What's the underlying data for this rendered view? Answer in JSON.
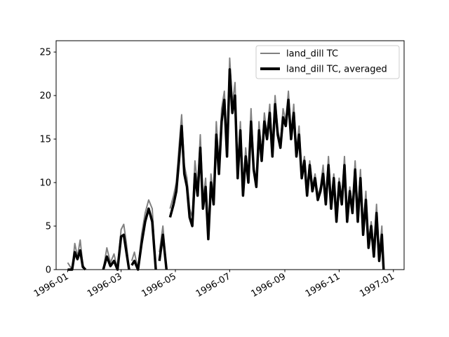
{
  "chart_data": {
    "type": "line",
    "title": "",
    "xlabel": "",
    "ylabel": "",
    "xlim": [
      "1995-12-19",
      "1997-01-13"
    ],
    "ylim": [
      0,
      26.3
    ],
    "grid": false,
    "legend_position": "upper-right",
    "x_ticks": [
      "1996-01",
      "1996-03",
      "1996-05",
      "1996-07",
      "1996-09",
      "1996-11",
      "1997-01"
    ],
    "y_ticks": [
      0,
      5,
      10,
      15,
      20,
      25
    ],
    "series": [
      {
        "name": "land_dill TC",
        "color": "#808080",
        "x": [
          "1996-01-01",
          "1996-01-06",
          "1996-01-09",
          "1996-01-12",
          "1996-01-15",
          "1996-01-18",
          "1996-01-21",
          "1996-02-10",
          "1996-02-14",
          "1996-02-18",
          "1996-02-22",
          "1996-02-26",
          "1996-03-01",
          "1996-03-04",
          "1996-03-07",
          "1996-03-10",
          "1996-03-13",
          "1996-03-16",
          "1996-03-20",
          "1996-03-24",
          "1996-03-28",
          "1996-04-01",
          "1996-04-05",
          "1996-04-09",
          "1996-04-13",
          "1996-04-17",
          "1996-04-21",
          "1996-04-25",
          "1996-04-29",
          "1996-05-02",
          "1996-05-05",
          "1996-05-08",
          "1996-05-11",
          "1996-05-14",
          "1996-05-17",
          "1996-05-20",
          "1996-05-23",
          "1996-05-26",
          "1996-05-29",
          "1996-06-01",
          "1996-06-04",
          "1996-06-07",
          "1996-06-10",
          "1996-06-13",
          "1996-06-16",
          "1996-06-19",
          "1996-06-22",
          "1996-06-25",
          "1996-06-28",
          "1996-07-01",
          "1996-07-04",
          "1996-07-07",
          "1996-07-10",
          "1996-07-13",
          "1996-07-16",
          "1996-07-19",
          "1996-07-22",
          "1996-07-25",
          "1996-07-28",
          "1996-07-31",
          "1996-08-03",
          "1996-08-06",
          "1996-08-09",
          "1996-08-12",
          "1996-08-15",
          "1996-08-18",
          "1996-08-21",
          "1996-08-24",
          "1996-08-27",
          "1996-08-30",
          "1996-09-02",
          "1996-09-05",
          "1996-09-08",
          "1996-09-11",
          "1996-09-14",
          "1996-09-17",
          "1996-09-20",
          "1996-09-23",
          "1996-09-26",
          "1996-09-29",
          "1996-10-02",
          "1996-10-05",
          "1996-10-08",
          "1996-10-11",
          "1996-10-14",
          "1996-10-17",
          "1996-10-20",
          "1996-10-23",
          "1996-10-26",
          "1996-10-29",
          "1996-11-01",
          "1996-11-04",
          "1996-11-07",
          "1996-11-10",
          "1996-11-13",
          "1996-11-16",
          "1996-11-19",
          "1996-11-22",
          "1996-11-25",
          "1996-11-28",
          "1996-12-01",
          "1996-12-04",
          "1996-12-07",
          "1996-12-10",
          "1996-12-13",
          "1996-12-16",
          "1996-12-19",
          "1996-12-21"
        ],
        "y": [
          0.8,
          0,
          3.0,
          1.5,
          3.4,
          0.5,
          0,
          0,
          2.5,
          0.8,
          1.8,
          0,
          4.6,
          5.2,
          3.0,
          0,
          1.0,
          2.0,
          0,
          4.0,
          6.5,
          8.0,
          7.0,
          0,
          2.0,
          5.0,
          0,
          7.0,
          8.5,
          10.0,
          14.0,
          17.8,
          12.0,
          10.5,
          7.0,
          6.0,
          12.5,
          9.5,
          15.5,
          8.0,
          10.5,
          4.0,
          11.0,
          8.5,
          17.0,
          12.0,
          18.5,
          20.5,
          14.0,
          24.3,
          19.0,
          21.5,
          11.0,
          17.0,
          9.0,
          14.0,
          10.5,
          18.5,
          12.0,
          10.0,
          17.0,
          13.0,
          18.0,
          15.5,
          19.0,
          13.5,
          20.0,
          16.0,
          14.5,
          18.5,
          17.0,
          20.5,
          15.5,
          19.0,
          13.5,
          16.5,
          11.0,
          13.0,
          9.0,
          12.5,
          9.5,
          11.0,
          8.5,
          9.5,
          12.0,
          8.0,
          13.0,
          7.5,
          11.0,
          6.0,
          10.5,
          8.0,
          13.0,
          6.0,
          9.5,
          7.0,
          12.5,
          6.5,
          11.5,
          4.5,
          9.0,
          3.0,
          5.5,
          2.0,
          7.5,
          1.5,
          5.0,
          0
        ],
        "gaps_after": [
          "1996-01-21",
          "1996-03-10",
          "1996-04-09",
          "1996-04-21"
        ]
      },
      {
        "name": "land_dill TC, averaged",
        "color": "#000000",
        "x": [
          "1996-01-01",
          "1996-01-06",
          "1996-01-09",
          "1996-01-12",
          "1996-01-15",
          "1996-01-18",
          "1996-01-21",
          "1996-02-10",
          "1996-02-14",
          "1996-02-18",
          "1996-02-22",
          "1996-02-26",
          "1996-03-01",
          "1996-03-04",
          "1996-03-07",
          "1996-03-10",
          "1996-03-13",
          "1996-03-16",
          "1996-03-20",
          "1996-03-24",
          "1996-03-28",
          "1996-04-01",
          "1996-04-05",
          "1996-04-09",
          "1996-04-13",
          "1996-04-17",
          "1996-04-21",
          "1996-04-25",
          "1996-04-29",
          "1996-05-02",
          "1996-05-05",
          "1996-05-08",
          "1996-05-11",
          "1996-05-14",
          "1996-05-17",
          "1996-05-20",
          "1996-05-23",
          "1996-05-26",
          "1996-05-29",
          "1996-06-01",
          "1996-06-04",
          "1996-06-07",
          "1996-06-10",
          "1996-06-13",
          "1996-06-16",
          "1996-06-19",
          "1996-06-22",
          "1996-06-25",
          "1996-06-28",
          "1996-07-01",
          "1996-07-04",
          "1996-07-07",
          "1996-07-10",
          "1996-07-13",
          "1996-07-16",
          "1996-07-19",
          "1996-07-22",
          "1996-07-25",
          "1996-07-28",
          "1996-07-31",
          "1996-08-03",
          "1996-08-06",
          "1996-08-09",
          "1996-08-12",
          "1996-08-15",
          "1996-08-18",
          "1996-08-21",
          "1996-08-24",
          "1996-08-27",
          "1996-08-30",
          "1996-09-02",
          "1996-09-05",
          "1996-09-08",
          "1996-09-11",
          "1996-09-14",
          "1996-09-17",
          "1996-09-20",
          "1996-09-23",
          "1996-09-26",
          "1996-09-29",
          "1996-10-02",
          "1996-10-05",
          "1996-10-08",
          "1996-10-11",
          "1996-10-14",
          "1996-10-17",
          "1996-10-20",
          "1996-10-23",
          "1996-10-26",
          "1996-10-29",
          "1996-11-01",
          "1996-11-04",
          "1996-11-07",
          "1996-11-10",
          "1996-11-13",
          "1996-11-16",
          "1996-11-19",
          "1996-11-22",
          "1996-11-25",
          "1996-11-28",
          "1996-12-01",
          "1996-12-04",
          "1996-12-07",
          "1996-12-10",
          "1996-12-13",
          "1996-12-16",
          "1996-12-19",
          "1996-12-21"
        ],
        "y": [
          0,
          0,
          2.0,
          1.2,
          2.2,
          0.3,
          0,
          0,
          1.5,
          0.4,
          1.0,
          0,
          3.8,
          4.0,
          2.0,
          0,
          0.5,
          1.0,
          0,
          3.0,
          5.5,
          7.0,
          5.5,
          0,
          1.0,
          4.0,
          0,
          6.0,
          7.5,
          9.0,
          12.5,
          16.5,
          11.0,
          9.5,
          6.0,
          5.0,
          11.0,
          8.5,
          14.0,
          7.0,
          9.5,
          3.5,
          10.0,
          7.5,
          15.5,
          11.0,
          17.0,
          19.5,
          13.0,
          23.0,
          18.0,
          20.0,
          10.5,
          16.0,
          8.5,
          13.0,
          10.0,
          17.0,
          11.5,
          9.5,
          16.0,
          12.5,
          17.0,
          15.0,
          18.0,
          13.0,
          19.0,
          15.5,
          14.0,
          17.5,
          16.5,
          19.5,
          15.0,
          18.0,
          13.0,
          15.5,
          10.5,
          12.5,
          8.5,
          12.0,
          9.0,
          10.5,
          8.0,
          9.0,
          11.0,
          7.5,
          12.0,
          7.0,
          10.5,
          5.5,
          10.0,
          7.5,
          12.0,
          5.5,
          9.0,
          6.5,
          11.5,
          5.5,
          10.5,
          4.0,
          8.0,
          2.5,
          5.0,
          1.5,
          6.5,
          1.0,
          4.0,
          0
        ],
        "gaps_after": [
          "1996-01-21",
          "1996-03-10",
          "1996-04-09",
          "1996-04-21"
        ]
      }
    ]
  }
}
